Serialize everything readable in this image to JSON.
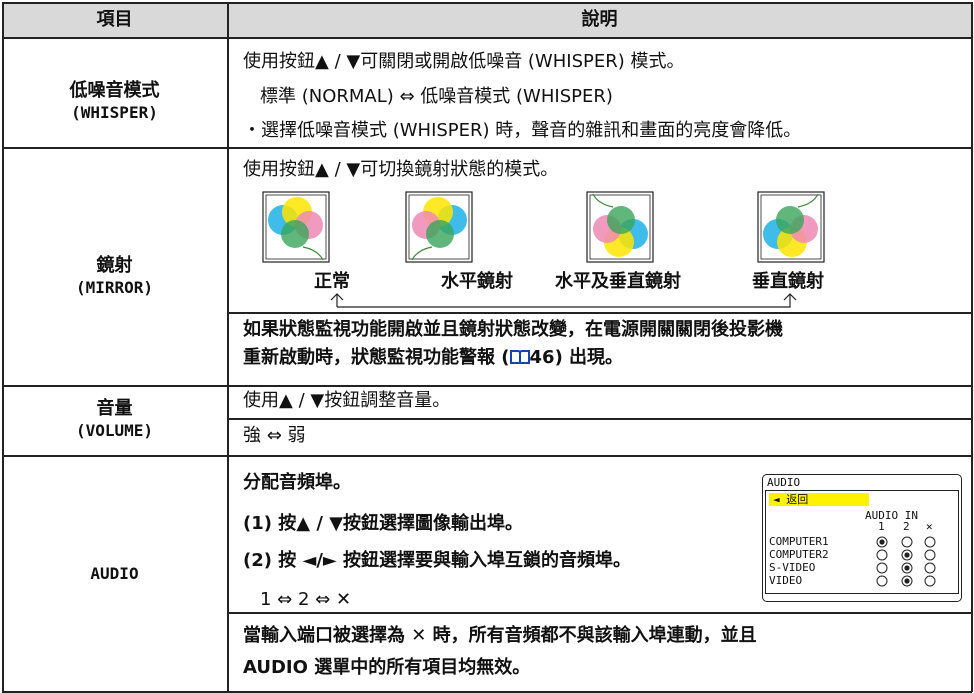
{
  "header": {
    "item": "項目",
    "description": "說明"
  },
  "rows": [
    {
      "item": "低噪音模式",
      "item_en": "(WHISPER)",
      "lines": [
        "使用按鈕▲ / ▼可關閉或開啟低噪音 (WHISPER) 模式。",
        "標準 (NORMAL) ⇔ 低噪音模式 (WHISPER)",
        "・選擇低噪音模式 (WHISPER) 時，聲音的雜訊和畫面的亮度會降低。"
      ]
    },
    {
      "item": "鏡射",
      "item_en": "(MIRROR)",
      "lines": [
        "使用按鈕▲ / ▼可切換鏡射狀態的模式。"
      ],
      "modes": [
        "正常",
        "水平鏡射",
        "水平及垂直鏡射",
        "垂直鏡射"
      ],
      "note": [
        "如果狀態監視功能開啟並且鏡射狀態改變，在電源開關關閉後投影機",
        "重新啟動時，狀態監視功能警報 (",
        "46",
        ") 出現。"
      ]
    },
    {
      "item": "音量",
      "item_en": "(VOLUME)",
      "lines": [
        "使用▲ / ▼按鈕調整音量。",
        "強 ⇔ 弱"
      ]
    },
    {
      "item": "AUDIO",
      "lines": [
        "分配音頻埠。",
        "(1) 按▲ / ▼按鈕選擇圖像輸出埠。",
        "(2) 按 ◄/► 按鈕選擇要與輸入埠互鎖的音頻埠。",
        "1 ⇔ 2 ⇔ ✕"
      ],
      "note": [
        "當輸入端口被選擇為 ✕ 時，所有音頻都不與該輸入埠連動，並且",
        "AUDIO 選單中的所有項目均無效。"
      ],
      "menu": {
        "title": "AUDIO",
        "back": "◄ 返回",
        "column_title": "AUDIO IN",
        "columns": [
          "1",
          "2",
          "✕"
        ],
        "rows": [
          "COMPUTER1",
          "COMPUTER2",
          "S-VIDEO",
          "VIDEO"
        ]
      }
    }
  ]
}
